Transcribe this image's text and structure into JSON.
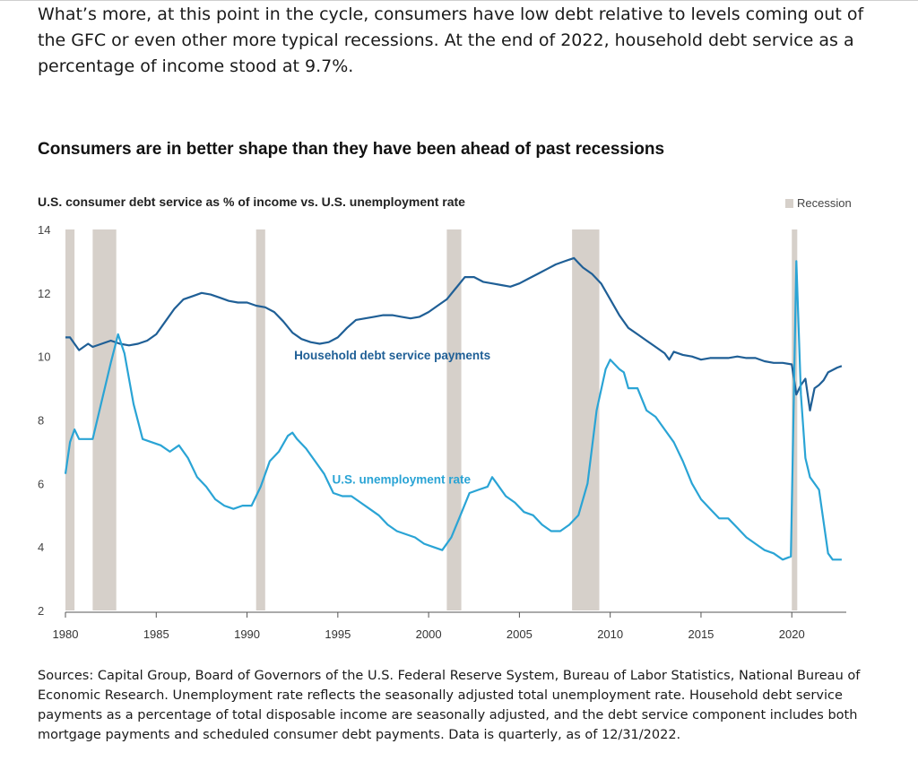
{
  "intro_text": "What’s more, at this point in the cycle, consumers have low debt relative to levels coming out of the GFC or even other more typical recessions. At the end of 2022, household debt service as a percentage of income stood at 9.7%.",
  "sources_text": "Sources: Capital Group, Board of Governors of the U.S. Federal Reserve System, Bureau of Labor Statistics, National Bureau of Economic Research. Unemployment rate reflects the seasonally adjusted total unemployment rate. Household debt service payments as a percentage of total disposable income are seasonally adjusted, and the debt service component includes both mortgage payments and scheduled consumer debt payments. Data is quarterly, as of 12/31/2022.",
  "colors": {
    "debt_line": "#1f5f96",
    "unemployment_line": "#2aa4d5",
    "recession": "#d6d0ca",
    "axis": "#555555"
  },
  "chart_data": {
    "type": "line",
    "title": "Consumers are in better shape than they have been ahead of past recessions",
    "subtitle": "U.S. consumer debt service as % of income vs. U.S. unemployment rate",
    "legend": [
      "Recession"
    ],
    "xlim": [
      1980,
      2023
    ],
    "ylim": [
      2,
      14
    ],
    "x_ticks": [
      1980,
      1985,
      1990,
      1995,
      2000,
      2005,
      2010,
      2015,
      2020
    ],
    "y_ticks": [
      2,
      4,
      6,
      8,
      10,
      12,
      14
    ],
    "recessions": [
      [
        1980.0,
        1980.5
      ],
      [
        1981.5,
        1982.8
      ],
      [
        1990.5,
        1991.0
      ],
      [
        2001.0,
        2001.8
      ],
      [
        2007.9,
        2009.4
      ],
      [
        2020.0,
        2020.3
      ]
    ],
    "series": [
      {
        "name": "Household debt service payments",
        "label_position": [
          1998.0,
          9.9
        ],
        "points": [
          [
            1980.0,
            10.6
          ],
          [
            1980.25,
            10.6
          ],
          [
            1980.5,
            10.4
          ],
          [
            1980.75,
            10.2
          ],
          [
            1981.0,
            10.3
          ],
          [
            1981.25,
            10.4
          ],
          [
            1981.5,
            10.3
          ],
          [
            1982.0,
            10.4
          ],
          [
            1982.5,
            10.5
          ],
          [
            1983.0,
            10.4
          ],
          [
            1983.5,
            10.35
          ],
          [
            1984.0,
            10.4
          ],
          [
            1984.5,
            10.5
          ],
          [
            1985.0,
            10.7
          ],
          [
            1985.5,
            11.1
          ],
          [
            1986.0,
            11.5
          ],
          [
            1986.5,
            11.8
          ],
          [
            1987.0,
            11.9
          ],
          [
            1987.5,
            12.0
          ],
          [
            1988.0,
            11.95
          ],
          [
            1988.5,
            11.85
          ],
          [
            1989.0,
            11.75
          ],
          [
            1989.5,
            11.7
          ],
          [
            1990.0,
            11.7
          ],
          [
            1990.5,
            11.6
          ],
          [
            1991.0,
            11.55
          ],
          [
            1991.5,
            11.4
          ],
          [
            1992.0,
            11.1
          ],
          [
            1992.5,
            10.75
          ],
          [
            1993.0,
            10.55
          ],
          [
            1993.5,
            10.45
          ],
          [
            1994.0,
            10.4
          ],
          [
            1994.5,
            10.45
          ],
          [
            1995.0,
            10.6
          ],
          [
            1995.5,
            10.9
          ],
          [
            1996.0,
            11.15
          ],
          [
            1996.5,
            11.2
          ],
          [
            1997.0,
            11.25
          ],
          [
            1997.5,
            11.3
          ],
          [
            1998.0,
            11.3
          ],
          [
            1998.5,
            11.25
          ],
          [
            1999.0,
            11.2
          ],
          [
            1999.5,
            11.25
          ],
          [
            2000.0,
            11.4
          ],
          [
            2000.5,
            11.6
          ],
          [
            2001.0,
            11.8
          ],
          [
            2001.5,
            12.15
          ],
          [
            2002.0,
            12.5
          ],
          [
            2002.5,
            12.5
          ],
          [
            2003.0,
            12.35
          ],
          [
            2003.5,
            12.3
          ],
          [
            2004.0,
            12.25
          ],
          [
            2004.5,
            12.2
          ],
          [
            2005.0,
            12.3
          ],
          [
            2005.5,
            12.45
          ],
          [
            2006.0,
            12.6
          ],
          [
            2006.5,
            12.75
          ],
          [
            2007.0,
            12.9
          ],
          [
            2007.5,
            13.0
          ],
          [
            2008.0,
            13.1
          ],
          [
            2008.25,
            12.95
          ],
          [
            2008.5,
            12.8
          ],
          [
            2009.0,
            12.6
          ],
          [
            2009.5,
            12.3
          ],
          [
            2010.0,
            11.8
          ],
          [
            2010.5,
            11.3
          ],
          [
            2011.0,
            10.9
          ],
          [
            2011.5,
            10.7
          ],
          [
            2012.0,
            10.5
          ],
          [
            2012.5,
            10.3
          ],
          [
            2013.0,
            10.1
          ],
          [
            2013.25,
            9.9
          ],
          [
            2013.5,
            10.15
          ],
          [
            2014.0,
            10.05
          ],
          [
            2014.5,
            10.0
          ],
          [
            2015.0,
            9.9
          ],
          [
            2015.5,
            9.95
          ],
          [
            2016.0,
            9.95
          ],
          [
            2016.5,
            9.95
          ],
          [
            2017.0,
            10.0
          ],
          [
            2017.5,
            9.95
          ],
          [
            2018.0,
            9.95
          ],
          [
            2018.5,
            9.85
          ],
          [
            2019.0,
            9.8
          ],
          [
            2019.5,
            9.8
          ],
          [
            2020.0,
            9.75
          ],
          [
            2020.25,
            8.8
          ],
          [
            2020.5,
            9.1
          ],
          [
            2020.75,
            9.3
          ],
          [
            2021.0,
            8.3
          ],
          [
            2021.25,
            9.0
          ],
          [
            2021.5,
            9.1
          ],
          [
            2021.75,
            9.25
          ],
          [
            2022.0,
            9.5
          ],
          [
            2022.5,
            9.65
          ],
          [
            2022.75,
            9.7
          ]
        ]
      },
      {
        "name": "U.S. unemployment rate",
        "label_position": [
          1998.5,
          6.0
        ],
        "points": [
          [
            1980.0,
            6.3
          ],
          [
            1980.25,
            7.3
          ],
          [
            1980.5,
            7.7
          ],
          [
            1980.75,
            7.4
          ],
          [
            1981.0,
            7.4
          ],
          [
            1981.5,
            7.4
          ],
          [
            1982.0,
            8.6
          ],
          [
            1982.5,
            9.8
          ],
          [
            1982.9,
            10.7
          ],
          [
            1983.25,
            10.1
          ],
          [
            1983.75,
            8.5
          ],
          [
            1984.25,
            7.4
          ],
          [
            1984.75,
            7.3
          ],
          [
            1985.25,
            7.2
          ],
          [
            1985.75,
            7.0
          ],
          [
            1986.25,
            7.2
          ],
          [
            1986.75,
            6.8
          ],
          [
            1987.25,
            6.2
          ],
          [
            1987.75,
            5.9
          ],
          [
            1988.25,
            5.5
          ],
          [
            1988.75,
            5.3
          ],
          [
            1989.25,
            5.2
          ],
          [
            1989.75,
            5.3
          ],
          [
            1990.25,
            5.3
          ],
          [
            1990.75,
            5.9
          ],
          [
            1991.25,
            6.7
          ],
          [
            1991.75,
            7.0
          ],
          [
            1992.25,
            7.5
          ],
          [
            1992.5,
            7.6
          ],
          [
            1992.75,
            7.4
          ],
          [
            1993.25,
            7.1
          ],
          [
            1993.75,
            6.7
          ],
          [
            1994.25,
            6.3
          ],
          [
            1994.75,
            5.7
          ],
          [
            1995.25,
            5.6
          ],
          [
            1995.75,
            5.6
          ],
          [
            1996.25,
            5.4
          ],
          [
            1996.75,
            5.2
          ],
          [
            1997.25,
            5.0
          ],
          [
            1997.75,
            4.7
          ],
          [
            1998.25,
            4.5
          ],
          [
            1998.75,
            4.4
          ],
          [
            1999.25,
            4.3
          ],
          [
            1999.75,
            4.1
          ],
          [
            2000.25,
            4.0
          ],
          [
            2000.75,
            3.9
          ],
          [
            2001.25,
            4.3
          ],
          [
            2001.75,
            5.0
          ],
          [
            2002.25,
            5.7
          ],
          [
            2002.75,
            5.8
          ],
          [
            2003.25,
            5.9
          ],
          [
            2003.5,
            6.2
          ],
          [
            2003.75,
            6.0
          ],
          [
            2004.25,
            5.6
          ],
          [
            2004.75,
            5.4
          ],
          [
            2005.25,
            5.1
          ],
          [
            2005.75,
            5.0
          ],
          [
            2006.25,
            4.7
          ],
          [
            2006.75,
            4.5
          ],
          [
            2007.25,
            4.5
          ],
          [
            2007.75,
            4.7
          ],
          [
            2008.25,
            5.0
          ],
          [
            2008.75,
            6.0
          ],
          [
            2009.25,
            8.3
          ],
          [
            2009.75,
            9.6
          ],
          [
            2010.0,
            9.9
          ],
          [
            2010.5,
            9.6
          ],
          [
            2010.75,
            9.5
          ],
          [
            2011.0,
            9.0
          ],
          [
            2011.5,
            9.0
          ],
          [
            2012.0,
            8.3
          ],
          [
            2012.5,
            8.1
          ],
          [
            2013.0,
            7.7
          ],
          [
            2013.5,
            7.3
          ],
          [
            2014.0,
            6.7
          ],
          [
            2014.5,
            6.0
          ],
          [
            2015.0,
            5.5
          ],
          [
            2015.5,
            5.2
          ],
          [
            2016.0,
            4.9
          ],
          [
            2016.5,
            4.9
          ],
          [
            2017.0,
            4.6
          ],
          [
            2017.5,
            4.3
          ],
          [
            2018.0,
            4.1
          ],
          [
            2018.5,
            3.9
          ],
          [
            2019.0,
            3.8
          ],
          [
            2019.5,
            3.6
          ],
          [
            2019.95,
            3.7
          ],
          [
            2020.25,
            13.0
          ],
          [
            2020.5,
            8.8
          ],
          [
            2020.75,
            6.8
          ],
          [
            2021.0,
            6.2
          ],
          [
            2021.5,
            5.8
          ],
          [
            2022.0,
            3.8
          ],
          [
            2022.25,
            3.6
          ],
          [
            2022.75,
            3.6
          ]
        ]
      }
    ]
  }
}
